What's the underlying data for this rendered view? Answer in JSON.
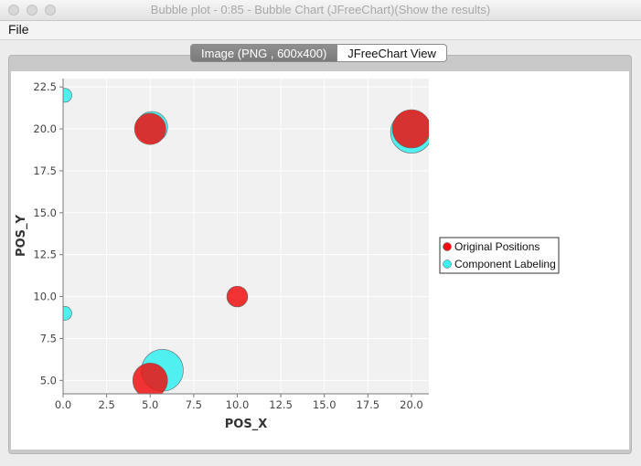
{
  "window": {
    "title": "Bubble plot - 0:85 - Bubble Chart (JFreeChart)(Show the results)"
  },
  "menu": {
    "file_label": "File"
  },
  "tabs": [
    {
      "label": "Image (PNG , 600x400)",
      "selected": true
    },
    {
      "label": "JFreeChart View",
      "selected": false
    }
  ],
  "chart_data": {
    "type": "scatter",
    "title": "",
    "xlabel": "POS_X",
    "ylabel": "POS_Y",
    "xlim": [
      0,
      21
    ],
    "ylim": [
      4.2,
      23
    ],
    "x_ticks": [
      "0.0",
      "2.5",
      "5.0",
      "7.5",
      "10.0",
      "12.5",
      "15.0",
      "17.5",
      "20.0"
    ],
    "y_ticks": [
      "5.0",
      "7.5",
      "10.0",
      "12.5",
      "15.0",
      "17.5",
      "20.0",
      "22.5"
    ],
    "grid": true,
    "legend_position": "right",
    "series": [
      {
        "name": "Component Labeling",
        "color": "#3ff0f0",
        "points": [
          {
            "x": 0.1,
            "y": 22.0,
            "size": 0.4
          },
          {
            "x": 5.1,
            "y": 20.1,
            "size": 0.9
          },
          {
            "x": 20.0,
            "y": 19.8,
            "size": 1.2
          },
          {
            "x": 0.1,
            "y": 9.0,
            "size": 0.4
          },
          {
            "x": 5.7,
            "y": 5.6,
            "size": 1.2
          }
        ]
      },
      {
        "name": "Original Positions",
        "color": "#ee1111",
        "points": [
          {
            "x": 5.0,
            "y": 20.0,
            "size": 0.9
          },
          {
            "x": 20.0,
            "y": 20.0,
            "size": 1.1
          },
          {
            "x": 10.0,
            "y": 10.0,
            "size": 0.6
          },
          {
            "x": 5.0,
            "y": 5.0,
            "size": 1.0
          }
        ]
      }
    ],
    "legend": [
      "Original Positions",
      "Component Labeling"
    ]
  }
}
